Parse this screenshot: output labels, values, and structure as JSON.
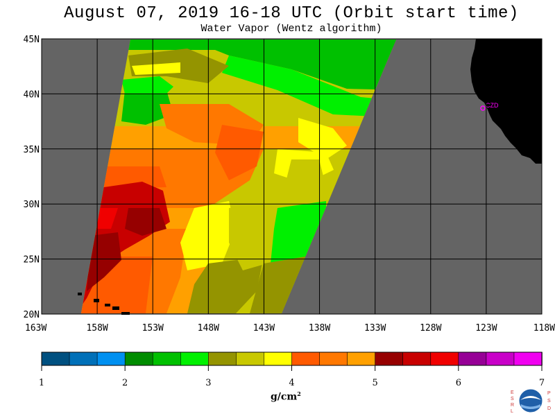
{
  "title": "August 07, 2019  16-18 UTC  (Orbit start time)",
  "subtitle": "Water Vapor (Wentz algorithm)",
  "colorbar": {
    "unit": "g/cm",
    "unit_exponent": "2",
    "tick_labels": [
      "1",
      "2",
      "3",
      "4",
      "5",
      "6",
      "7"
    ],
    "colors": [
      "#005080",
      "#0070b8",
      "#0090f0",
      "#008c00",
      "#00c000",
      "#00f000",
      "#949400",
      "#c8c800",
      "#ffff00",
      "#ff5a00",
      "#ff7800",
      "#ffa000",
      "#960000",
      "#c80000",
      "#f00000",
      "#960096",
      "#c800c8",
      "#f000f0"
    ]
  },
  "map": {
    "station_label": "CZD",
    "land_color": "#000000",
    "no_data_color": "#646464",
    "lat_labels": [
      "45N",
      "40N",
      "35N",
      "30N",
      "25N",
      "20N"
    ],
    "lon_labels": [
      "163W",
      "158W",
      "153W",
      "148W",
      "143W",
      "138W",
      "133W",
      "128W",
      "123W",
      "118W"
    ]
  },
  "logo": {
    "left_letters": [
      "E",
      "S",
      "R",
      "L"
    ],
    "right_letters": [
      "P",
      "S",
      "D"
    ],
    "name": "noaa-logo"
  },
  "chart_data": {
    "type": "heatmap",
    "title": "August 07, 2019  16-18 UTC  (Orbit start time)",
    "subtitle": "Water Vapor (Wentz algorithm)",
    "variable": "Water Vapor",
    "units": "g/cm²",
    "value_range": [
      1,
      7
    ],
    "lat_range": [
      20,
      45
    ],
    "lon_range": [
      -163,
      -118
    ],
    "lat_ticks": [
      "45N",
      "40N",
      "35N",
      "30N",
      "25N",
      "20N"
    ],
    "lon_ticks": [
      "163W",
      "158W",
      "153W",
      "148W",
      "143W",
      "138W",
      "133W",
      "128W",
      "123W",
      "118W"
    ],
    "swath_regions": [
      {
        "region": "north of 40N",
        "approx_value": 3.0
      },
      {
        "region": "38-40N",
        "approx_value": 3.4
      },
      {
        "region": "35-38N",
        "approx_value": 3.8
      },
      {
        "region": "west 30-35N",
        "approx_value": 4.5
      },
      {
        "region": "southwest 22-30N",
        "approx_value": 5.2
      },
      {
        "region": "central 22-30N",
        "approx_value": 4.0
      },
      {
        "region": "east 22-30N",
        "approx_value": 3.0
      }
    ]
  }
}
